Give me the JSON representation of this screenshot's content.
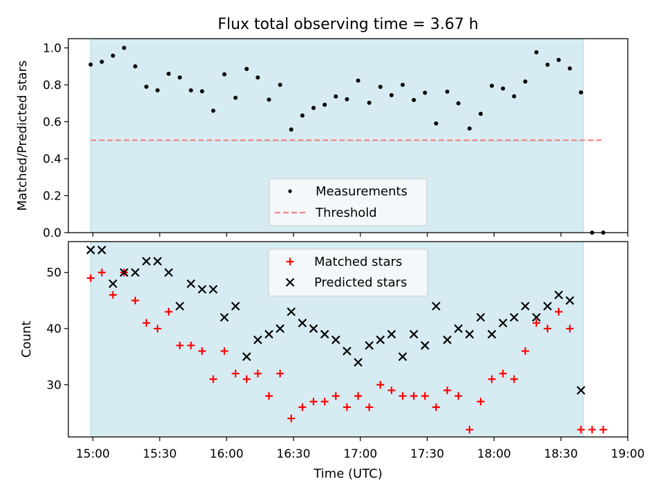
{
  "figure": {
    "title": "Flux total observing time = 3.67 h"
  },
  "colors": {
    "shade": "#add8e6",
    "threshold": "#f08080",
    "measurement": "#000000",
    "matched": "#ff0000",
    "predicted": "#000000"
  },
  "chart_data": [
    {
      "type": "scatter",
      "ylabel": "Matched/Predicted stars",
      "ylim": [
        0.0,
        1.05
      ],
      "yticks": [
        0.0,
        0.2,
        0.4,
        0.6,
        0.8,
        1.0
      ],
      "ytick_labels": [
        "0.0",
        "0.2",
        "0.4",
        "0.6",
        "0.8",
        "1.0"
      ],
      "xlim": [
        "14:49",
        "19:00"
      ],
      "shaded_span": [
        "14:59",
        "18:40"
      ],
      "legend": {
        "placement": "lower-center",
        "entries": [
          "Measurements",
          "Threshold"
        ]
      },
      "series": [
        {
          "name": "Measurements",
          "marker": "dot",
          "points": [
            [
              "14:59",
              0.91
            ],
            [
              "15:04",
              0.925
            ],
            [
              "15:09",
              0.958
            ],
            [
              "15:14",
              1.0
            ],
            [
              "15:19",
              0.9
            ],
            [
              "15:24",
              0.79
            ],
            [
              "15:29",
              0.77
            ],
            [
              "15:34",
              0.86
            ],
            [
              "15:39",
              0.84
            ],
            [
              "15:44",
              0.77
            ],
            [
              "15:49",
              0.765
            ],
            [
              "15:54",
              0.66
            ],
            [
              "15:59",
              0.857
            ],
            [
              "16:04",
              0.73
            ],
            [
              "16:09",
              0.886
            ],
            [
              "16:14",
              0.84
            ],
            [
              "16:19",
              0.72
            ],
            [
              "16:24",
              0.8
            ],
            [
              "16:29",
              0.558
            ],
            [
              "16:34",
              0.634
            ],
            [
              "16:39",
              0.675
            ],
            [
              "16:44",
              0.692
            ],
            [
              "16:49",
              0.737
            ],
            [
              "16:54",
              0.722
            ],
            [
              "16:59",
              0.823
            ],
            [
              "17:04",
              0.703
            ],
            [
              "17:09",
              0.789
            ],
            [
              "17:14",
              0.744
            ],
            [
              "17:19",
              0.8
            ],
            [
              "17:24",
              0.718
            ],
            [
              "17:29",
              0.757
            ],
            [
              "17:34",
              0.591
            ],
            [
              "17:39",
              0.763
            ],
            [
              "17:44",
              0.7
            ],
            [
              "17:49",
              0.564
            ],
            [
              "17:54",
              0.643
            ],
            [
              "17:59",
              0.795
            ],
            [
              "18:04",
              0.78
            ],
            [
              "18:09",
              0.738
            ],
            [
              "18:14",
              0.818
            ],
            [
              "18:19",
              0.976
            ],
            [
              "18:24",
              0.909
            ],
            [
              "18:29",
              0.935
            ],
            [
              "18:34",
              0.889
            ],
            [
              "18:39",
              0.759
            ],
            [
              "18:44",
              0.0
            ],
            [
              "18:49",
              0.0
            ]
          ]
        },
        {
          "name": "Threshold",
          "style": "dashed",
          "y": 0.5,
          "x_range": [
            "14:59",
            "18:49"
          ]
        }
      ]
    },
    {
      "type": "scatter",
      "xlabel": "Time (UTC)",
      "ylabel": "Count",
      "ylim": [
        20.7,
        55.5
      ],
      "yticks": [
        30,
        40,
        50
      ],
      "ytick_labels": [
        "30",
        "40",
        "50"
      ],
      "xticks": [
        "15:00",
        "15:30",
        "16:00",
        "16:30",
        "17:00",
        "17:30",
        "18:00",
        "18:30",
        "19:00"
      ],
      "xlim": [
        "14:49",
        "19:00"
      ],
      "shaded_span": [
        "14:59",
        "18:40"
      ],
      "legend": {
        "placement": "upper-center",
        "entries": [
          "Matched stars",
          "Predicted stars"
        ]
      },
      "series": [
        {
          "name": "Matched stars",
          "marker": "plus",
          "points": [
            [
              "14:59",
              49
            ],
            [
              "15:04",
              50
            ],
            [
              "15:09",
              46
            ],
            [
              "15:14",
              50
            ],
            [
              "15:19",
              45
            ],
            [
              "15:24",
              41
            ],
            [
              "15:29",
              40
            ],
            [
              "15:34",
              43
            ],
            [
              "15:39",
              37
            ],
            [
              "15:44",
              37
            ],
            [
              "15:49",
              36
            ],
            [
              "15:54",
              31
            ],
            [
              "15:59",
              36
            ],
            [
              "16:04",
              32
            ],
            [
              "16:09",
              31
            ],
            [
              "16:14",
              32
            ],
            [
              "16:19",
              28
            ],
            [
              "16:24",
              32
            ],
            [
              "16:29",
              24
            ],
            [
              "16:34",
              26
            ],
            [
              "16:39",
              27
            ],
            [
              "16:44",
              27
            ],
            [
              "16:49",
              28
            ],
            [
              "16:54",
              26
            ],
            [
              "16:59",
              28
            ],
            [
              "17:04",
              26
            ],
            [
              "17:09",
              30
            ],
            [
              "17:14",
              29
            ],
            [
              "17:19",
              28
            ],
            [
              "17:24",
              28
            ],
            [
              "17:29",
              28
            ],
            [
              "17:34",
              26
            ],
            [
              "17:39",
              29
            ],
            [
              "17:44",
              28
            ],
            [
              "17:49",
              22
            ],
            [
              "17:54",
              27
            ],
            [
              "17:59",
              31
            ],
            [
              "18:04",
              32
            ],
            [
              "18:09",
              31
            ],
            [
              "18:14",
              36
            ],
            [
              "18:19",
              41
            ],
            [
              "18:24",
              40
            ],
            [
              "18:29",
              43
            ],
            [
              "18:34",
              40
            ],
            [
              "18:39",
              22
            ],
            [
              "18:44",
              22
            ],
            [
              "18:49",
              22
            ]
          ]
        },
        {
          "name": "Predicted stars",
          "marker": "x",
          "points": [
            [
              "14:59",
              54
            ],
            [
              "15:04",
              54
            ],
            [
              "15:09",
              48
            ],
            [
              "15:14",
              50
            ],
            [
              "15:19",
              50
            ],
            [
              "15:24",
              52
            ],
            [
              "15:29",
              52
            ],
            [
              "15:34",
              50
            ],
            [
              "15:39",
              44
            ],
            [
              "15:44",
              48
            ],
            [
              "15:49",
              47
            ],
            [
              "15:54",
              47
            ],
            [
              "15:59",
              42
            ],
            [
              "16:04",
              44
            ],
            [
              "16:09",
              35
            ],
            [
              "16:14",
              38
            ],
            [
              "16:19",
              39
            ],
            [
              "16:24",
              40
            ],
            [
              "16:29",
              43
            ],
            [
              "16:34",
              41
            ],
            [
              "16:39",
              40
            ],
            [
              "16:44",
              39
            ],
            [
              "16:49",
              38
            ],
            [
              "16:54",
              36
            ],
            [
              "16:59",
              34
            ],
            [
              "17:04",
              37
            ],
            [
              "17:09",
              38
            ],
            [
              "17:14",
              39
            ],
            [
              "17:19",
              35
            ],
            [
              "17:24",
              39
            ],
            [
              "17:29",
              37
            ],
            [
              "17:34",
              44
            ],
            [
              "17:39",
              38
            ],
            [
              "17:44",
              40
            ],
            [
              "17:49",
              39
            ],
            [
              "17:54",
              42
            ],
            [
              "17:59",
              39
            ],
            [
              "18:04",
              41
            ],
            [
              "18:09",
              42
            ],
            [
              "18:14",
              44
            ],
            [
              "18:19",
              42
            ],
            [
              "18:24",
              44
            ],
            [
              "18:29",
              46
            ],
            [
              "18:34",
              45
            ],
            [
              "18:39",
              29
            ]
          ]
        }
      ]
    }
  ]
}
